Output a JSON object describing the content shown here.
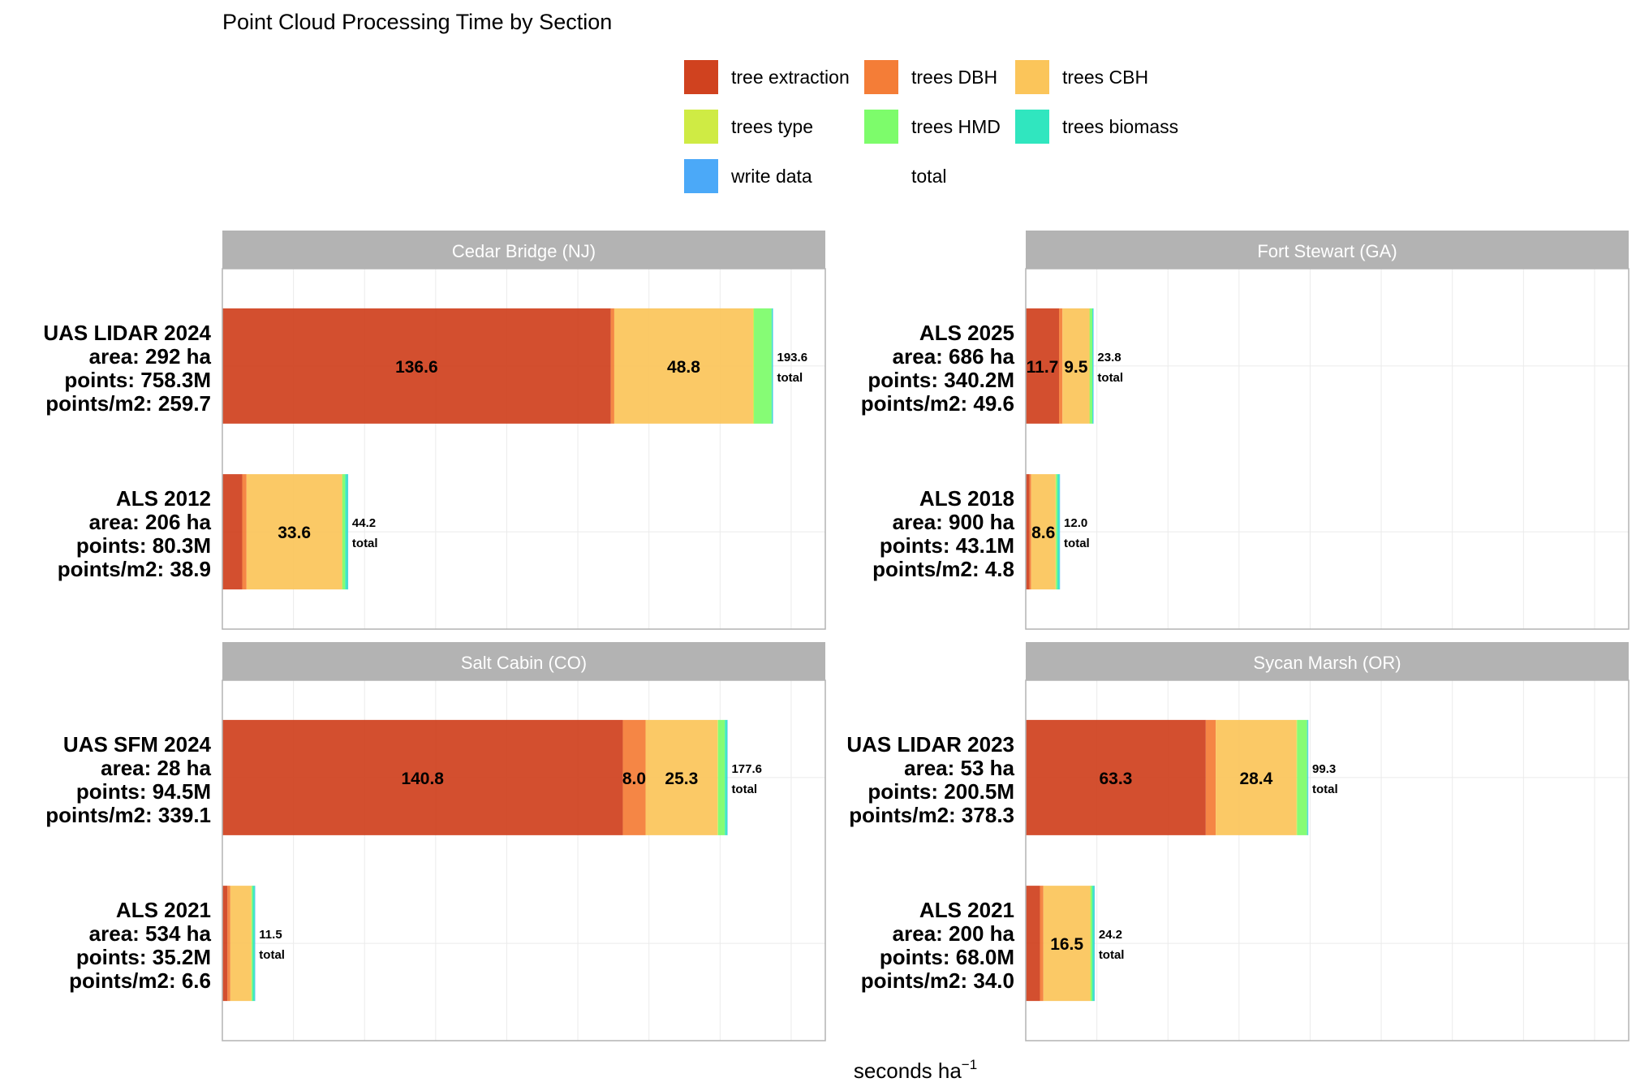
{
  "chart_data": {
    "type": "bar",
    "orientation": "horizontal",
    "stacked": true,
    "title": "Point Cloud Processing Time by Section",
    "xlabel": "seconds ha",
    "xlabel_superscript": "−1",
    "xlim": [
      0,
      212
    ],
    "grid": true,
    "x_tick_labels_shown": false,
    "legend_position": "top",
    "legend": [
      {
        "key": "tree_extraction",
        "label": "tree extraction",
        "color": "#D0421F"
      },
      {
        "key": "trees_dbh",
        "label": "trees DBH",
        "color": "#F47D37"
      },
      {
        "key": "trees_cbh",
        "label": "trees CBH",
        "color": "#FBC55A"
      },
      {
        "key": "trees_type",
        "label": "trees type",
        "color": "#CFEB44"
      },
      {
        "key": "trees_hmd",
        "label": "trees HMD",
        "color": "#7DFC6B"
      },
      {
        "key": "trees_biomass",
        "label": "trees biomass",
        "color": "#30E6BF"
      },
      {
        "key": "write_data",
        "label": "write data",
        "color": "#4BA9F8"
      },
      {
        "key": "total",
        "label": "total",
        "color": "#FFFFFF"
      }
    ],
    "total_suffix": "total",
    "panels": [
      {
        "name": "Cedar Bridge (NJ)",
        "rows": [
          {
            "label": [
              "UAS LIDAR 2024",
              "area: 292 ha",
              "points: 758.3M",
              "points/m2: 259.7"
            ],
            "total": 193.6,
            "total_label": "193.6",
            "segments": [
              {
                "series": "tree_extraction",
                "value": 136.6,
                "label": "136.6"
              },
              {
                "series": "trees_dbh",
                "value": 1.2,
                "label": ""
              },
              {
                "series": "trees_cbh",
                "value": 48.8,
                "label": "48.8"
              },
              {
                "series": "trees_type",
                "value": 0.3,
                "label": ""
              },
              {
                "series": "trees_hmd",
                "value": 6.2,
                "label": ""
              },
              {
                "series": "trees_biomass",
                "value": 0.4,
                "label": ""
              },
              {
                "series": "write_data",
                "value": 0.1,
                "label": ""
              }
            ]
          },
          {
            "label": [
              "ALS 2012",
              "area: 206 ha",
              "points: 80.3M",
              "points/m2: 38.9"
            ],
            "total": 44.2,
            "total_label": "44.2",
            "segments": [
              {
                "series": "tree_extraction",
                "value": 7.0,
                "label": ""
              },
              {
                "series": "trees_dbh",
                "value": 1.5,
                "label": ""
              },
              {
                "series": "trees_cbh",
                "value": 33.6,
                "label": "33.6"
              },
              {
                "series": "trees_type",
                "value": 0.1,
                "label": ""
              },
              {
                "series": "trees_hmd",
                "value": 1.0,
                "label": ""
              },
              {
                "series": "trees_biomass",
                "value": 0.9,
                "label": ""
              },
              {
                "series": "write_data",
                "value": 0.1,
                "label": ""
              }
            ]
          }
        ]
      },
      {
        "name": "Fort Stewart (GA)",
        "rows": [
          {
            "label": [
              "ALS 2025",
              "area: 686 ha",
              "points: 340.2M",
              "points/m2: 49.6"
            ],
            "total": 23.8,
            "total_label": "23.8",
            "segments": [
              {
                "series": "tree_extraction",
                "value": 11.7,
                "label": "11.7"
              },
              {
                "series": "trees_dbh",
                "value": 1.2,
                "label": ""
              },
              {
                "series": "trees_cbh",
                "value": 9.5,
                "label": "9.5"
              },
              {
                "series": "trees_type",
                "value": 0.1,
                "label": ""
              },
              {
                "series": "trees_hmd",
                "value": 0.9,
                "label": ""
              },
              {
                "series": "trees_biomass",
                "value": 0.3,
                "label": ""
              },
              {
                "series": "write_data",
                "value": 0.1,
                "label": ""
              }
            ]
          },
          {
            "label": [
              "ALS 2018",
              "area: 900 ha",
              "points: 43.1M",
              "points/m2: 4.8"
            ],
            "total": 12.0,
            "total_label": "12.0",
            "segments": [
              {
                "series": "tree_extraction",
                "value": 1.3,
                "label": ""
              },
              {
                "series": "trees_dbh",
                "value": 0.6,
                "label": ""
              },
              {
                "series": "trees_cbh",
                "value": 8.6,
                "label": "8.6"
              },
              {
                "series": "trees_type",
                "value": 0.1,
                "label": ""
              },
              {
                "series": "trees_hmd",
                "value": 0.5,
                "label": ""
              },
              {
                "series": "trees_biomass",
                "value": 0.8,
                "label": ""
              },
              {
                "series": "write_data",
                "value": 0.1,
                "label": ""
              }
            ]
          }
        ]
      },
      {
        "name": "Salt Cabin (CO)",
        "rows": [
          {
            "label": [
              "UAS SFM 2024",
              "area: 28 ha",
              "points: 94.5M",
              "points/m2: 339.1"
            ],
            "total": 177.6,
            "total_label": "177.6",
            "segments": [
              {
                "series": "tree_extraction",
                "value": 140.8,
                "label": "140.8"
              },
              {
                "series": "trees_dbh",
                "value": 8.0,
                "label": "8.0"
              },
              {
                "series": "trees_cbh",
                "value": 25.3,
                "label": "25.3"
              },
              {
                "series": "trees_type",
                "value": 0.2,
                "label": ""
              },
              {
                "series": "trees_hmd",
                "value": 2.4,
                "label": ""
              },
              {
                "series": "trees_biomass",
                "value": 0.8,
                "label": ""
              },
              {
                "series": "write_data",
                "value": 0.1,
                "label": ""
              }
            ]
          },
          {
            "label": [
              "ALS 2021",
              "area: 534 ha",
              "points: 35.2M",
              "points/m2: 6.6"
            ],
            "total": 11.5,
            "total_label": "11.5",
            "segments": [
              {
                "series": "tree_extraction",
                "value": 1.8,
                "label": ""
              },
              {
                "series": "trees_dbh",
                "value": 1.0,
                "label": ""
              },
              {
                "series": "trees_cbh",
                "value": 7.4,
                "label": ""
              },
              {
                "series": "trees_type",
                "value": 0.1,
                "label": ""
              },
              {
                "series": "trees_hmd",
                "value": 0.4,
                "label": ""
              },
              {
                "series": "trees_biomass",
                "value": 0.7,
                "label": ""
              },
              {
                "series": "write_data",
                "value": 0.1,
                "label": ""
              }
            ]
          }
        ]
      },
      {
        "name": "Sycan Marsh (OR)",
        "rows": [
          {
            "label": [
              "UAS LIDAR 2023",
              "area: 53 ha",
              "points: 200.5M",
              "points/m2: 378.3"
            ],
            "total": 99.3,
            "total_label": "99.3",
            "segments": [
              {
                "series": "tree_extraction",
                "value": 63.3,
                "label": "63.3"
              },
              {
                "series": "trees_dbh",
                "value": 3.5,
                "label": ""
              },
              {
                "series": "trees_cbh",
                "value": 28.4,
                "label": "28.4"
              },
              {
                "series": "trees_type",
                "value": 0.2,
                "label": ""
              },
              {
                "series": "trees_hmd",
                "value": 3.5,
                "label": ""
              },
              {
                "series": "trees_biomass",
                "value": 0.3,
                "label": ""
              },
              {
                "series": "write_data",
                "value": 0.1,
                "label": ""
              }
            ]
          },
          {
            "label": [
              "ALS 2021",
              "area: 200 ha",
              "points: 68.0M",
              "points/m2: 34.0"
            ],
            "total": 24.2,
            "total_label": "24.2",
            "segments": [
              {
                "series": "tree_extraction",
                "value": 5.0,
                "label": ""
              },
              {
                "series": "trees_dbh",
                "value": 1.2,
                "label": ""
              },
              {
                "series": "trees_cbh",
                "value": 16.5,
                "label": "16.5"
              },
              {
                "series": "trees_type",
                "value": 0.1,
                "label": ""
              },
              {
                "series": "trees_hmd",
                "value": 0.6,
                "label": ""
              },
              {
                "series": "trees_biomass",
                "value": 0.7,
                "label": ""
              },
              {
                "series": "write_data",
                "value": 0.1,
                "label": ""
              }
            ]
          }
        ]
      }
    ]
  }
}
